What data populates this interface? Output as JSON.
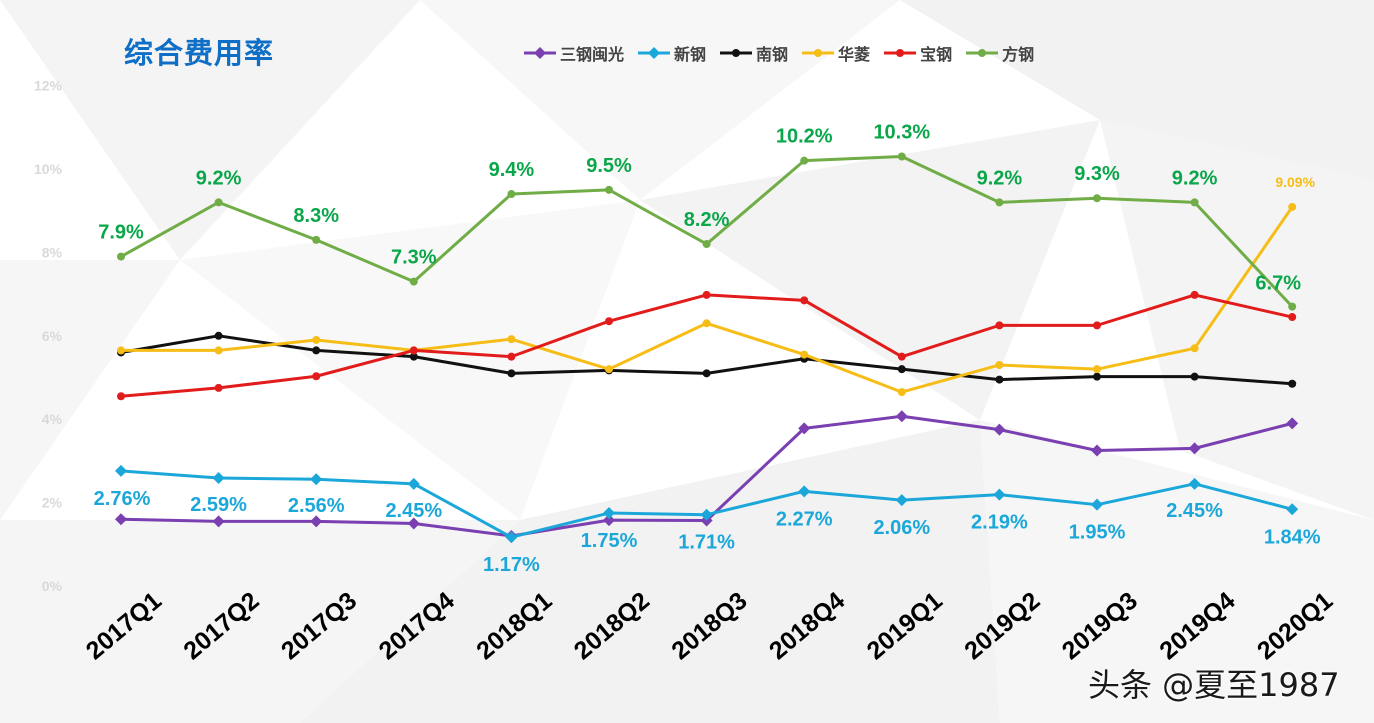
{
  "chart_data": {
    "type": "line",
    "title": "综合费用率",
    "categories": [
      "2017Q1",
      "2017Q2",
      "2017Q3",
      "2017Q4",
      "2018Q1",
      "2018Q2",
      "2018Q3",
      "2018Q4",
      "2019Q1",
      "2019Q2",
      "2019Q3",
      "2019Q4",
      "2020Q1"
    ],
    "y_ticks": [
      "0%",
      "2%",
      "4%",
      "6%",
      "8%",
      "10%",
      "12%"
    ],
    "ylim": [
      0,
      12
    ],
    "grid": false,
    "legend_position": "top",
    "series": [
      {
        "name": "三钢闽光",
        "color": "#7a3fb0",
        "marker": "diamond",
        "values": [
          1.6,
          1.55,
          1.55,
          1.5,
          1.2,
          1.58,
          1.57,
          3.78,
          4.07,
          3.75,
          3.25,
          3.3,
          3.9
        ],
        "labels": []
      },
      {
        "name": "新钢",
        "color": "#1ba7d9",
        "marker": "diamond",
        "values": [
          2.76,
          2.59,
          2.56,
          2.45,
          1.17,
          1.75,
          1.71,
          2.27,
          2.06,
          2.19,
          1.95,
          2.45,
          1.84
        ],
        "labels": [
          "2.76%",
          "2.59%",
          "2.56%",
          "2.45%",
          "1.17%",
          "1.75%",
          "1.71%",
          "2.27%",
          "2.06%",
          "2.19%",
          "1.95%",
          "2.45%",
          "1.84%"
        ]
      },
      {
        "name": "南钢",
        "color": "#111111",
        "marker": "circle",
        "values": [
          5.6,
          6.0,
          5.65,
          5.5,
          5.1,
          5.17,
          5.1,
          5.45,
          5.2,
          4.95,
          5.02,
          5.02,
          4.85
        ],
        "labels": []
      },
      {
        "name": "华菱",
        "color": "#f6bd16",
        "marker": "circle",
        "values": [
          5.65,
          5.65,
          5.9,
          5.65,
          5.92,
          5.2,
          6.3,
          5.55,
          4.65,
          5.3,
          5.2,
          5.7,
          9.09
        ],
        "labels": [
          "",
          "",
          "",
          "",
          "",
          "",
          "",
          "",
          "",
          "",
          "",
          "",
          "9.09%"
        ]
      },
      {
        "name": "宝钢",
        "color": "#e21b1b",
        "marker": "circle",
        "values": [
          4.55,
          4.75,
          5.03,
          5.65,
          5.5,
          6.35,
          6.98,
          6.85,
          5.5,
          6.25,
          6.25,
          6.98,
          6.45
        ],
        "labels": []
      },
      {
        "name": "方钢",
        "color": "#70ad47",
        "marker": "circle",
        "values": [
          7.9,
          9.2,
          8.3,
          7.3,
          9.4,
          9.5,
          8.2,
          10.2,
          10.3,
          9.2,
          9.3,
          9.2,
          6.7
        ],
        "labels": [
          "7.9%",
          "9.2%",
          "8.3%",
          "7.3%",
          "9.4%",
          "9.5%",
          "8.2%",
          "10.2%",
          "10.3%",
          "9.2%",
          "9.3%",
          "9.2%",
          "6.7%"
        ]
      }
    ]
  },
  "watermark": "头条 @夏至1987"
}
